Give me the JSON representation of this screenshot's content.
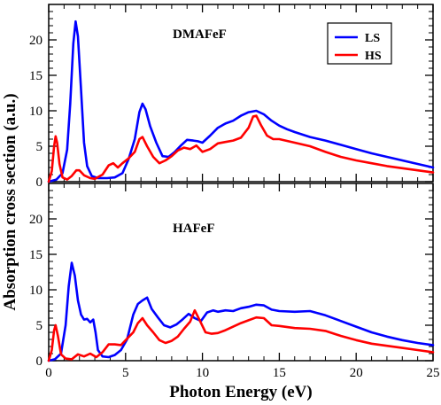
{
  "chart_data": {
    "type": "line",
    "xlabel": "Photon Energy (eV)",
    "ylabel": "Absorption cross section (a.u.)",
    "xlim": [
      0,
      25
    ],
    "ylim": [
      0,
      25
    ],
    "xticks": [
      "0",
      "5",
      "10",
      "15",
      "20",
      "25"
    ],
    "yticks": [
      "0",
      "5",
      "10",
      "15",
      "20"
    ],
    "legend": {
      "position": "top-right",
      "panel": "top",
      "entries": [
        {
          "label": "LS",
          "color": "#0000ff"
        },
        {
          "label": "HS",
          "color": "#ff0000"
        }
      ]
    },
    "panels": [
      {
        "title": "DMAFeF",
        "series": [
          {
            "name": "LS",
            "color": "#0000ff",
            "points": [
              [
                0.0,
                0.0
              ],
              [
                0.5,
                0.3
              ],
              [
                0.9,
                1.2
              ],
              [
                1.2,
                4.5
              ],
              [
                1.4,
                11.0
              ],
              [
                1.6,
                19.5
              ],
              [
                1.75,
                22.6
              ],
              [
                1.9,
                20.5
              ],
              [
                2.1,
                13.0
              ],
              [
                2.3,
                5.5
              ],
              [
                2.5,
                2.2
              ],
              [
                2.8,
                0.8
              ],
              [
                3.2,
                0.5
              ],
              [
                3.8,
                0.5
              ],
              [
                4.3,
                0.6
              ],
              [
                4.8,
                1.2
              ],
              [
                5.2,
                3.2
              ],
              [
                5.6,
                6.0
              ],
              [
                5.9,
                9.8
              ],
              [
                6.1,
                11.0
              ],
              [
                6.3,
                10.2
              ],
              [
                6.6,
                7.8
              ],
              [
                7.0,
                5.5
              ],
              [
                7.4,
                3.6
              ],
              [
                7.8,
                3.5
              ],
              [
                8.2,
                4.2
              ],
              [
                8.6,
                5.1
              ],
              [
                9.0,
                5.9
              ],
              [
                9.4,
                5.8
              ],
              [
                9.7,
                5.7
              ],
              [
                10.0,
                5.5
              ],
              [
                10.5,
                6.5
              ],
              [
                11.0,
                7.6
              ],
              [
                11.5,
                8.2
              ],
              [
                12.0,
                8.6
              ],
              [
                12.5,
                9.3
              ],
              [
                13.0,
                9.8
              ],
              [
                13.5,
                10.0
              ],
              [
                14.0,
                9.5
              ],
              [
                14.5,
                8.6
              ],
              [
                15.0,
                7.9
              ],
              [
                15.5,
                7.4
              ],
              [
                16.0,
                7.0
              ],
              [
                17.0,
                6.3
              ],
              [
                18.0,
                5.8
              ],
              [
                19.0,
                5.2
              ],
              [
                20.0,
                4.6
              ],
              [
                21.0,
                4.0
              ],
              [
                22.0,
                3.5
              ],
              [
                23.0,
                3.0
              ],
              [
                24.0,
                2.5
              ],
              [
                25.0,
                2.0
              ]
            ]
          },
          {
            "name": "HS",
            "color": "#ff0000",
            "points": [
              [
                0.0,
                0.0
              ],
              [
                0.2,
                1.5
              ],
              [
                0.35,
                5.0
              ],
              [
                0.45,
                6.4
              ],
              [
                0.55,
                5.5
              ],
              [
                0.7,
                2.5
              ],
              [
                0.9,
                0.6
              ],
              [
                1.2,
                0.3
              ],
              [
                1.5,
                0.8
              ],
              [
                1.8,
                1.6
              ],
              [
                2.0,
                1.6
              ],
              [
                2.3,
                0.9
              ],
              [
                2.7,
                0.5
              ],
              [
                3.0,
                0.4
              ],
              [
                3.5,
                1.0
              ],
              [
                3.9,
                2.3
              ],
              [
                4.2,
                2.6
              ],
              [
                4.5,
                2.0
              ],
              [
                4.8,
                2.6
              ],
              [
                5.2,
                3.3
              ],
              [
                5.6,
                4.2
              ],
              [
                5.9,
                6.0
              ],
              [
                6.1,
                6.3
              ],
              [
                6.4,
                5.0
              ],
              [
                6.8,
                3.5
              ],
              [
                7.2,
                2.6
              ],
              [
                7.6,
                3.0
              ],
              [
                8.0,
                3.6
              ],
              [
                8.4,
                4.4
              ],
              [
                8.8,
                4.8
              ],
              [
                9.2,
                4.6
              ],
              [
                9.6,
                5.1
              ],
              [
                10.0,
                4.2
              ],
              [
                10.5,
                4.6
              ],
              [
                11.0,
                5.4
              ],
              [
                11.5,
                5.6
              ],
              [
                12.0,
                5.8
              ],
              [
                12.5,
                6.2
              ],
              [
                13.0,
                7.6
              ],
              [
                13.3,
                9.2
              ],
              [
                13.5,
                9.3
              ],
              [
                13.8,
                8.0
              ],
              [
                14.2,
                6.5
              ],
              [
                14.6,
                6.0
              ],
              [
                15.0,
                6.0
              ],
              [
                16.0,
                5.5
              ],
              [
                17.0,
                5.0
              ],
              [
                18.0,
                4.2
              ],
              [
                19.0,
                3.5
              ],
              [
                20.0,
                3.0
              ],
              [
                21.0,
                2.6
              ],
              [
                22.0,
                2.2
              ],
              [
                23.0,
                1.9
              ],
              [
                24.0,
                1.6
              ],
              [
                25.0,
                1.3
              ]
            ]
          }
        ]
      },
      {
        "title": "HAFeF",
        "series": [
          {
            "name": "LS",
            "color": "#0000ff",
            "points": [
              [
                0.0,
                0.0
              ],
              [
                0.4,
                0.2
              ],
              [
                0.8,
                1.0
              ],
              [
                1.1,
                5.0
              ],
              [
                1.3,
                10.5
              ],
              [
                1.5,
                13.8
              ],
              [
                1.7,
                12.0
              ],
              [
                1.9,
                8.5
              ],
              [
                2.1,
                6.5
              ],
              [
                2.3,
                5.8
              ],
              [
                2.5,
                5.9
              ],
              [
                2.7,
                5.4
              ],
              [
                2.9,
                5.8
              ],
              [
                3.05,
                4.0
              ],
              [
                3.2,
                1.5
              ],
              [
                3.5,
                0.6
              ],
              [
                3.9,
                0.5
              ],
              [
                4.3,
                0.8
              ],
              [
                4.7,
                1.5
              ],
              [
                5.1,
                3.0
              ],
              [
                5.5,
                6.5
              ],
              [
                5.8,
                8.0
              ],
              [
                6.1,
                8.5
              ],
              [
                6.4,
                8.9
              ],
              [
                6.7,
                7.3
              ],
              [
                7.1,
                6.1
              ],
              [
                7.5,
                5.0
              ],
              [
                7.9,
                4.7
              ],
              [
                8.3,
                5.1
              ],
              [
                8.7,
                5.8
              ],
              [
                9.1,
                6.6
              ],
              [
                9.5,
                6.0
              ],
              [
                9.9,
                5.6
              ],
              [
                10.3,
                6.8
              ],
              [
                10.7,
                7.1
              ],
              [
                11.0,
                6.9
              ],
              [
                11.5,
                7.1
              ],
              [
                12.0,
                7.0
              ],
              [
                12.5,
                7.4
              ],
              [
                13.0,
                7.6
              ],
              [
                13.5,
                7.9
              ],
              [
                14.0,
                7.8
              ],
              [
                14.5,
                7.2
              ],
              [
                15.0,
                7.0
              ],
              [
                16.0,
                6.9
              ],
              [
                17.0,
                7.0
              ],
              [
                18.0,
                6.4
              ],
              [
                19.0,
                5.6
              ],
              [
                20.0,
                4.8
              ],
              [
                21.0,
                4.0
              ],
              [
                22.0,
                3.4
              ],
              [
                23.0,
                2.9
              ],
              [
                24.0,
                2.5
              ],
              [
                25.0,
                2.2
              ]
            ]
          },
          {
            "name": "HS",
            "color": "#ff0000",
            "points": [
              [
                0.0,
                0.0
              ],
              [
                0.2,
                1.5
              ],
              [
                0.35,
                4.3
              ],
              [
                0.45,
                5.0
              ],
              [
                0.6,
                3.5
              ],
              [
                0.8,
                0.9
              ],
              [
                1.1,
                0.3
              ],
              [
                1.5,
                0.2
              ],
              [
                1.9,
                0.9
              ],
              [
                2.3,
                0.6
              ],
              [
                2.7,
                1.0
              ],
              [
                3.1,
                0.5
              ],
              [
                3.5,
                1.2
              ],
              [
                3.9,
                2.3
              ],
              [
                4.3,
                2.3
              ],
              [
                4.7,
                2.2
              ],
              [
                5.1,
                3.1
              ],
              [
                5.5,
                4.0
              ],
              [
                5.8,
                5.3
              ],
              [
                6.1,
                6.0
              ],
              [
                6.4,
                5.0
              ],
              [
                6.8,
                4.0
              ],
              [
                7.2,
                2.9
              ],
              [
                7.6,
                2.5
              ],
              [
                8.0,
                2.8
              ],
              [
                8.4,
                3.4
              ],
              [
                8.8,
                4.5
              ],
              [
                9.2,
                5.5
              ],
              [
                9.5,
                7.1
              ],
              [
                9.8,
                5.8
              ],
              [
                10.2,
                4.0
              ],
              [
                10.6,
                3.8
              ],
              [
                11.0,
                3.9
              ],
              [
                11.5,
                4.3
              ],
              [
                12.0,
                4.8
              ],
              [
                12.5,
                5.3
              ],
              [
                13.0,
                5.7
              ],
              [
                13.5,
                6.1
              ],
              [
                14.0,
                6.0
              ],
              [
                14.5,
                5.0
              ],
              [
                15.0,
                4.9
              ],
              [
                16.0,
                4.6
              ],
              [
                17.0,
                4.5
              ],
              [
                18.0,
                4.2
              ],
              [
                19.0,
                3.5
              ],
              [
                20.0,
                2.9
              ],
              [
                21.0,
                2.4
              ],
              [
                22.0,
                2.1
              ],
              [
                23.0,
                1.8
              ],
              [
                24.0,
                1.5
              ],
              [
                25.0,
                1.2
              ]
            ]
          }
        ]
      }
    ]
  }
}
